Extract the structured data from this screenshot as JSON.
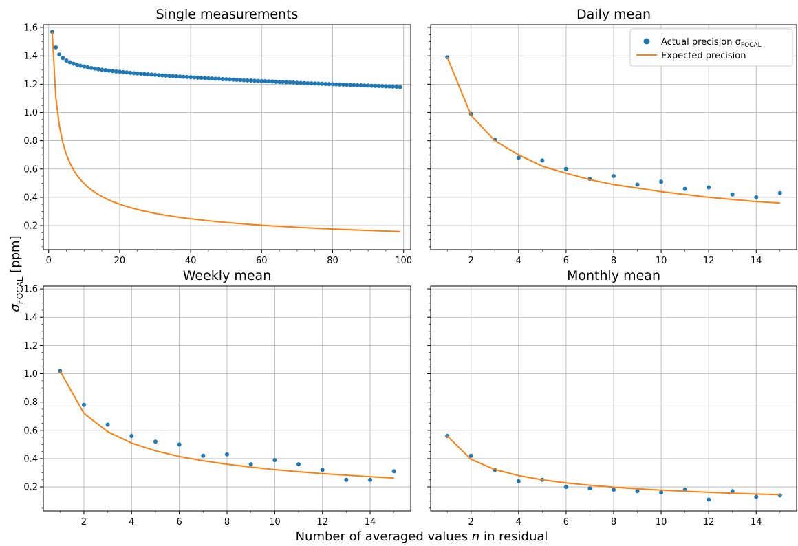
{
  "figure": {
    "ylabel": "σ",
    "ylabel_sub": "FOCAL",
    "ylabel_unit": "[ppm]",
    "xlabel_pre": "Number of averaged values ",
    "xlabel_var": "n",
    "xlabel_post": " in residual"
  },
  "legend": {
    "actual_prefix": "Actual precision σ",
    "actual_sub": "FOCAL",
    "expected": "Expected precision",
    "placement": "upper-right of Daily mean panel"
  },
  "colors": {
    "actual": "#1f77b4",
    "expected": "#ff7f0e",
    "grid": "#b0b0b0"
  },
  "chart_data": [
    {
      "type": "scatter+line",
      "title": "Single measurements",
      "xlim": [
        -1.5,
        102
      ],
      "ylim": [
        0.03,
        1.62
      ],
      "xticks": [
        0,
        20,
        40,
        60,
        80,
        100
      ],
      "yticks": [
        0.2,
        0.4,
        0.6,
        0.8,
        1.0,
        1.2,
        1.4,
        1.6
      ],
      "show_yticklabels": true,
      "grid": true,
      "series": [
        {
          "name": "Actual precision σ_FOCAL",
          "kind": "scatter",
          "x": [
            1,
            2,
            3,
            4,
            5,
            6,
            7,
            8,
            9,
            10,
            11,
            12,
            13,
            14,
            15,
            16,
            17,
            18,
            19,
            20,
            21,
            22,
            23,
            24,
            25,
            26,
            27,
            28,
            29,
            30,
            31,
            32,
            33,
            34,
            35,
            36,
            37,
            38,
            39,
            40,
            41,
            42,
            43,
            44,
            45,
            46,
            47,
            48,
            49,
            50,
            51,
            52,
            53,
            54,
            55,
            56,
            57,
            58,
            59,
            60,
            61,
            62,
            63,
            64,
            65,
            66,
            67,
            68,
            69,
            70,
            71,
            72,
            73,
            74,
            75,
            76,
            77,
            78,
            79,
            80,
            81,
            82,
            83,
            84,
            85,
            86,
            87,
            88,
            89,
            90,
            91,
            92,
            93,
            94,
            95,
            96,
            97,
            98,
            99
          ],
          "y": [
            1.57,
            1.46,
            1.41,
            1.385,
            1.367,
            1.355,
            1.345,
            1.337,
            1.33,
            1.325,
            1.319,
            1.314,
            1.31,
            1.306,
            1.302,
            1.299,
            1.296,
            1.293,
            1.29,
            1.288,
            1.285,
            1.283,
            1.28,
            1.278,
            1.276,
            1.274,
            1.272,
            1.27,
            1.268,
            1.266,
            1.264,
            1.262,
            1.261,
            1.259,
            1.257,
            1.256,
            1.254,
            1.252,
            1.251,
            1.249,
            1.248,
            1.246,
            1.245,
            1.243,
            1.242,
            1.24,
            1.239,
            1.238,
            1.236,
            1.235,
            1.234,
            1.232,
            1.231,
            1.23,
            1.228,
            1.227,
            1.226,
            1.225,
            1.223,
            1.222,
            1.221,
            1.22,
            1.219,
            1.217,
            1.216,
            1.215,
            1.214,
            1.213,
            1.212,
            1.21,
            1.209,
            1.208,
            1.207,
            1.206,
            1.205,
            1.204,
            1.203,
            1.202,
            1.201,
            1.2,
            1.199,
            1.198,
            1.197,
            1.196,
            1.195,
            1.194,
            1.193,
            1.192,
            1.191,
            1.19,
            1.189,
            1.188,
            1.187,
            1.186,
            1.185,
            1.184,
            1.183,
            1.182,
            1.18
          ]
        },
        {
          "name": "Expected precision",
          "kind": "line",
          "model": "a/sqrt(n)",
          "a": 1.57,
          "x_range": [
            1,
            99
          ]
        }
      ]
    },
    {
      "type": "scatter+line",
      "title": "Daily mean",
      "xlim": [
        0.3,
        15.7
      ],
      "ylim": [
        0.03,
        1.62
      ],
      "xticks": [
        2,
        4,
        6,
        8,
        10,
        12,
        14
      ],
      "yticks": [
        0.2,
        0.4,
        0.6,
        0.8,
        1.0,
        1.2,
        1.4,
        1.6
      ],
      "show_yticklabels": false,
      "grid": true,
      "series": [
        {
          "name": "Actual precision σ_FOCAL",
          "kind": "scatter",
          "x": [
            1,
            2,
            3,
            4,
            5,
            6,
            7,
            8,
            9,
            10,
            11,
            12,
            13,
            14,
            15
          ],
          "y": [
            1.39,
            0.99,
            0.81,
            0.68,
            0.66,
            0.6,
            0.53,
            0.55,
            0.49,
            0.51,
            0.46,
            0.47,
            0.42,
            0.4,
            0.43
          ]
        },
        {
          "name": "Expected precision",
          "kind": "line",
          "x": [
            1,
            2,
            3,
            4,
            5,
            6,
            7,
            8,
            9,
            10,
            11,
            12,
            13,
            14,
            15
          ],
          "y": [
            1.39,
            0.98,
            0.8,
            0.7,
            0.62,
            0.57,
            0.525,
            0.49,
            0.465,
            0.44,
            0.42,
            0.4,
            0.385,
            0.37,
            0.36
          ]
        }
      ]
    },
    {
      "type": "scatter+line",
      "title": "Weekly mean",
      "xlim": [
        0.3,
        15.7
      ],
      "ylim": [
        0.03,
        1.62
      ],
      "xticks": [
        2,
        4,
        6,
        8,
        10,
        12,
        14
      ],
      "yticks": [
        0.2,
        0.4,
        0.6,
        0.8,
        1.0,
        1.2,
        1.4,
        1.6
      ],
      "show_yticklabels": true,
      "grid": true,
      "series": [
        {
          "name": "Actual precision σ_FOCAL",
          "kind": "scatter",
          "x": [
            1,
            2,
            3,
            4,
            5,
            6,
            7,
            8,
            9,
            10,
            11,
            12,
            13,
            14,
            15
          ],
          "y": [
            1.02,
            0.78,
            0.64,
            0.56,
            0.52,
            0.5,
            0.42,
            0.43,
            0.36,
            0.39,
            0.36,
            0.32,
            0.25,
            0.25,
            0.31
          ]
        },
        {
          "name": "Expected precision",
          "kind": "line",
          "x": [
            1,
            2,
            3,
            4,
            5,
            6,
            7,
            8,
            9,
            10,
            11,
            12,
            13,
            14,
            15
          ],
          "y": [
            1.02,
            0.72,
            0.59,
            0.51,
            0.455,
            0.415,
            0.385,
            0.36,
            0.34,
            0.322,
            0.307,
            0.294,
            0.283,
            0.272,
            0.263
          ]
        }
      ]
    },
    {
      "type": "scatter+line",
      "title": "Monthly mean",
      "xlim": [
        0.3,
        15.7
      ],
      "ylim": [
        0.03,
        1.62
      ],
      "xticks": [
        2,
        4,
        6,
        8,
        10,
        12,
        14
      ],
      "yticks": [
        0.2,
        0.4,
        0.6,
        0.8,
        1.0,
        1.2,
        1.4,
        1.6
      ],
      "show_yticklabels": false,
      "grid": true,
      "series": [
        {
          "name": "Actual precision σ_FOCAL",
          "kind": "scatter",
          "x": [
            1,
            2,
            3,
            4,
            5,
            6,
            7,
            8,
            9,
            10,
            11,
            12,
            13,
            14,
            15
          ],
          "y": [
            0.56,
            0.42,
            0.32,
            0.24,
            0.25,
            0.2,
            0.19,
            0.18,
            0.17,
            0.16,
            0.18,
            0.11,
            0.17,
            0.13,
            0.14
          ]
        },
        {
          "name": "Expected precision",
          "kind": "line",
          "x": [
            1,
            2,
            3,
            4,
            5,
            6,
            7,
            8,
            9,
            10,
            11,
            12,
            13,
            14,
            15
          ],
          "y": [
            0.56,
            0.395,
            0.323,
            0.28,
            0.25,
            0.228,
            0.212,
            0.198,
            0.187,
            0.177,
            0.169,
            0.162,
            0.155,
            0.15,
            0.145
          ]
        }
      ]
    }
  ]
}
